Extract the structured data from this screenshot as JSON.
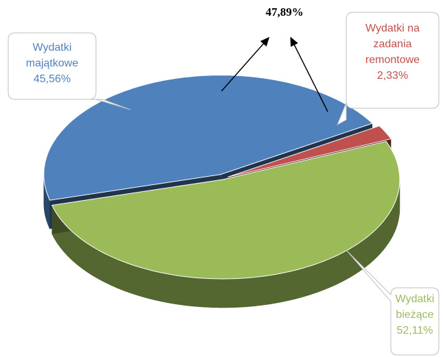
{
  "chart_data": {
    "type": "pie",
    "categories": [
      "Wydatki majątkowe",
      "Wydatki na zadania remontowe",
      "Wydatki bieżące"
    ],
    "values": [
      45.56,
      2.33,
      52.11
    ],
    "value_labels": [
      "45,56%",
      "2,33%",
      "52,11%"
    ],
    "colors": [
      "#4f81bd",
      "#c0504d",
      "#9bbb59"
    ],
    "annotation": "47,89%"
  }
}
